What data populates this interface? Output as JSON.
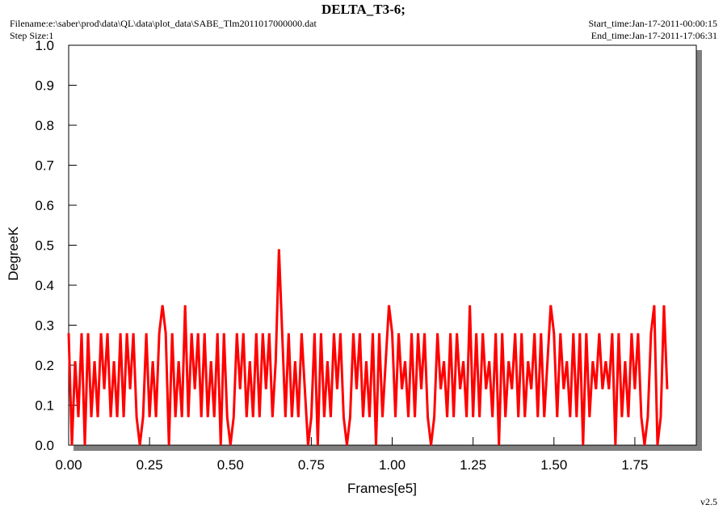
{
  "chart_data": {
    "type": "line",
    "title": "DELTA_T3-6;",
    "filename": "Filename:e:\\saber\\prod\\data\\QL\\data\\plot_data\\SABE_Tlm2011017000000.dat",
    "step_size": "Step Size:1",
    "start_time": "Start_time:Jan-17-2011-00:00:15",
    "end_time": "End_time:Jan-17-2011-17:06:31",
    "version": "v2.5",
    "x_label": "Frames[e5]",
    "y_label": "DegreeK",
    "xlim": [
      0,
      1.94
    ],
    "ylim": [
      0,
      1.0
    ],
    "xticks": [
      {
        "value": 0,
        "label": "0.00"
      },
      0.25,
      {
        "value": 0.5,
        "label": "0.50"
      },
      0.75,
      {
        "value": 1,
        "label": "1.00"
      },
      1.25,
      {
        "value": 1.5,
        "label": "1.50"
      },
      1.75
    ],
    "yticks": [
      {
        "value": 0,
        "label": "0.0"
      },
      0.1,
      0.2,
      0.3,
      0.4,
      0.5,
      0.6,
      0.7,
      0.8,
      0.9,
      {
        "value": 1,
        "label": "1.0"
      }
    ],
    "x": [
      0.0,
      0.01,
      0.02,
      0.03,
      0.04,
      0.05,
      0.06,
      0.07,
      0.08,
      0.09,
      0.1,
      0.11,
      0.12,
      0.13,
      0.14,
      0.15,
      0.16,
      0.17,
      0.18,
      0.19,
      0.2,
      0.21,
      0.22,
      0.23,
      0.24,
      0.25,
      0.26,
      0.27,
      0.28,
      0.29,
      0.3,
      0.31,
      0.32,
      0.33,
      0.34,
      0.35,
      0.36,
      0.37,
      0.38,
      0.39,
      0.4,
      0.41,
      0.42,
      0.43,
      0.44,
      0.45,
      0.46,
      0.47,
      0.48,
      0.49,
      0.5,
      0.51,
      0.52,
      0.53,
      0.54,
      0.55,
      0.56,
      0.57,
      0.58,
      0.59,
      0.6,
      0.61,
      0.62,
      0.63,
      0.64,
      0.65,
      0.66,
      0.67,
      0.68,
      0.69,
      0.7,
      0.71,
      0.72,
      0.73,
      0.74,
      0.75,
      0.76,
      0.77,
      0.78,
      0.79,
      0.8,
      0.81,
      0.82,
      0.83,
      0.84,
      0.85,
      0.86,
      0.87,
      0.88,
      0.89,
      0.9,
      0.91,
      0.92,
      0.93,
      0.94,
      0.95,
      0.96,
      0.97,
      0.98,
      0.99,
      1.0,
      1.01,
      1.02,
      1.03,
      1.04,
      1.05,
      1.06,
      1.07,
      1.08,
      1.09,
      1.1,
      1.11,
      1.12,
      1.13,
      1.14,
      1.15,
      1.16,
      1.17,
      1.18,
      1.19,
      1.2,
      1.21,
      1.22,
      1.23,
      1.24,
      1.25,
      1.26,
      1.27,
      1.28,
      1.29,
      1.3,
      1.31,
      1.32,
      1.33,
      1.34,
      1.35,
      1.36,
      1.37,
      1.38,
      1.39,
      1.4,
      1.41,
      1.42,
      1.43,
      1.44,
      1.45,
      1.46,
      1.47,
      1.48,
      1.49,
      1.5,
      1.51,
      1.52,
      1.53,
      1.54,
      1.55,
      1.56,
      1.57,
      1.58,
      1.59,
      1.6,
      1.61,
      1.62,
      1.63,
      1.64,
      1.65,
      1.66,
      1.67,
      1.68,
      1.69,
      1.7,
      1.71,
      1.72,
      1.73,
      1.74,
      1.75,
      1.76,
      1.77,
      1.78,
      1.79,
      1.8,
      1.81,
      1.82,
      1.83,
      1.84,
      1.85
    ],
    "series": [
      {
        "color": "#ff0000",
        "values": [
          0.28,
          0.0,
          0.21,
          0.07,
          0.28,
          0.0,
          0.28,
          0.07,
          0.21,
          0.07,
          0.28,
          0.14,
          0.28,
          0.07,
          0.21,
          0.07,
          0.28,
          0.07,
          0.28,
          0.14,
          0.28,
          0.07,
          0.0,
          0.07,
          0.28,
          0.07,
          0.21,
          0.07,
          0.28,
          0.35,
          0.28,
          0.0,
          0.28,
          0.07,
          0.21,
          0.07,
          0.35,
          0.07,
          0.28,
          0.14,
          0.28,
          0.07,
          0.28,
          0.07,
          0.21,
          0.07,
          0.28,
          0.0,
          0.28,
          0.07,
          0.0,
          0.07,
          0.28,
          0.14,
          0.28,
          0.07,
          0.21,
          0.07,
          0.28,
          0.07,
          0.28,
          0.14,
          0.28,
          0.07,
          0.21,
          0.49,
          0.28,
          0.07,
          0.28,
          0.07,
          0.21,
          0.07,
          0.28,
          0.14,
          0.0,
          0.07,
          0.28,
          0.0,
          0.28,
          0.07,
          0.21,
          0.07,
          0.28,
          0.14,
          0.28,
          0.07,
          0.0,
          0.07,
          0.28,
          0.14,
          0.28,
          0.07,
          0.21,
          0.07,
          0.28,
          0.0,
          0.28,
          0.07,
          0.21,
          0.35,
          0.28,
          0.07,
          0.28,
          0.14,
          0.21,
          0.07,
          0.28,
          0.07,
          0.28,
          0.14,
          0.28,
          0.07,
          0.0,
          0.07,
          0.28,
          0.14,
          0.21,
          0.07,
          0.28,
          0.07,
          0.28,
          0.14,
          0.21,
          0.07,
          0.35,
          0.07,
          0.28,
          0.07,
          0.28,
          0.14,
          0.21,
          0.07,
          0.28,
          0.0,
          0.28,
          0.07,
          0.21,
          0.14,
          0.28,
          0.07,
          0.28,
          0.07,
          0.21,
          0.14,
          0.28,
          0.07,
          0.28,
          0.07,
          0.21,
          0.35,
          0.28,
          0.07,
          0.28,
          0.14,
          0.21,
          0.07,
          0.28,
          0.07,
          0.28,
          0.0,
          0.28,
          0.07,
          0.21,
          0.14,
          0.28,
          0.14,
          0.21,
          0.14,
          0.28,
          0.0,
          0.28,
          0.07,
          0.21,
          0.07,
          0.28,
          0.14,
          0.28,
          0.07,
          0.0,
          0.07,
          0.28,
          0.35,
          0.0,
          0.07,
          0.35,
          0.14
        ]
      }
    ]
  }
}
